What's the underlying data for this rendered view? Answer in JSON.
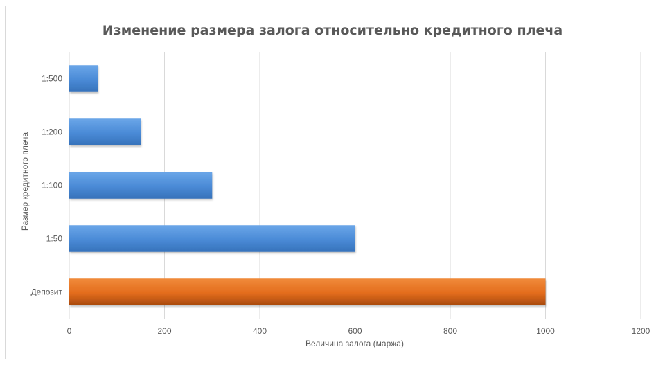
{
  "chart_data": {
    "type": "bar",
    "orientation": "horizontal",
    "title": "Изменение размера залога относительно кредитного плеча",
    "xlabel": "Величина залога (маржа)",
    "ylabel": "Размер кредитного плеча",
    "categories": [
      "Депозит",
      "1:50",
      "1:100",
      "1:200",
      "1:500"
    ],
    "values": [
      1000,
      600,
      300,
      150,
      60
    ],
    "bar_colors": [
      "#e36c1c",
      "#4a8ad6",
      "#4a8ad6",
      "#4a8ad6",
      "#4a8ad6"
    ],
    "xlim": [
      0,
      1200
    ],
    "xticks": [
      0,
      200,
      400,
      600,
      800,
      1000,
      1200
    ],
    "grid": true,
    "legend": "none"
  }
}
